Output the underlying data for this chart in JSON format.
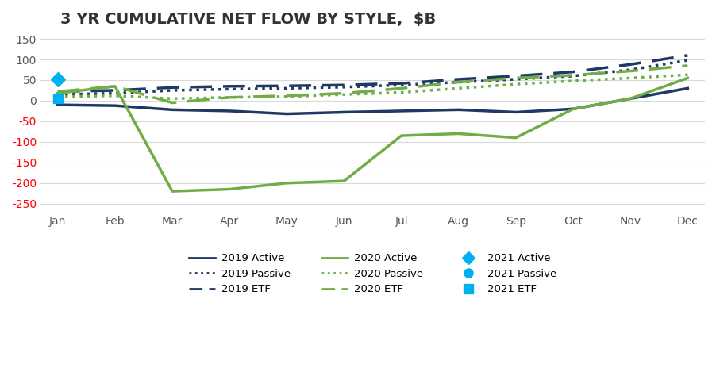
{
  "title": "3 YR CUMULATIVE NET FLOW BY STYLE,  $B",
  "months": [
    "Jan",
    "Feb",
    "Mar",
    "Apr",
    "May",
    "Jun",
    "Jul",
    "Aug",
    "Sep",
    "Oct",
    "Nov",
    "Dec"
  ],
  "series": {
    "active_2019": [
      -10,
      -12,
      -22,
      -25,
      -32,
      -28,
      -25,
      -22,
      -28,
      -20,
      5,
      30
    ],
    "passive_2019": [
      15,
      18,
      25,
      28,
      30,
      33,
      38,
      45,
      52,
      60,
      75,
      98
    ],
    "etf_2019": [
      22,
      25,
      32,
      35,
      36,
      38,
      42,
      52,
      60,
      70,
      88,
      110
    ],
    "active_2020": [
      18,
      35,
      -220,
      -215,
      -200,
      -195,
      -85,
      -80,
      -90,
      -20,
      5,
      55
    ],
    "passive_2020": [
      10,
      12,
      5,
      8,
      10,
      15,
      20,
      30,
      40,
      48,
      55,
      63
    ],
    "etf_2020": [
      22,
      35,
      -5,
      8,
      12,
      18,
      30,
      45,
      55,
      62,
      72,
      85
    ],
    "active_2021": [
      52
    ],
    "passive_2021": [
      5
    ],
    "etf_2021": [
      5
    ]
  },
  "colors": {
    "navy": "#1f3864",
    "green": "#70ad47",
    "cyan": "#00b0f0"
  },
  "ylim": [
    -270,
    160
  ],
  "yticks": [
    -250,
    -200,
    -150,
    -100,
    -50,
    0,
    50,
    100,
    150
  ],
  "negative_tick_color": "#ff0000",
  "positive_tick_color": "#595959",
  "background_color": "#ffffff"
}
